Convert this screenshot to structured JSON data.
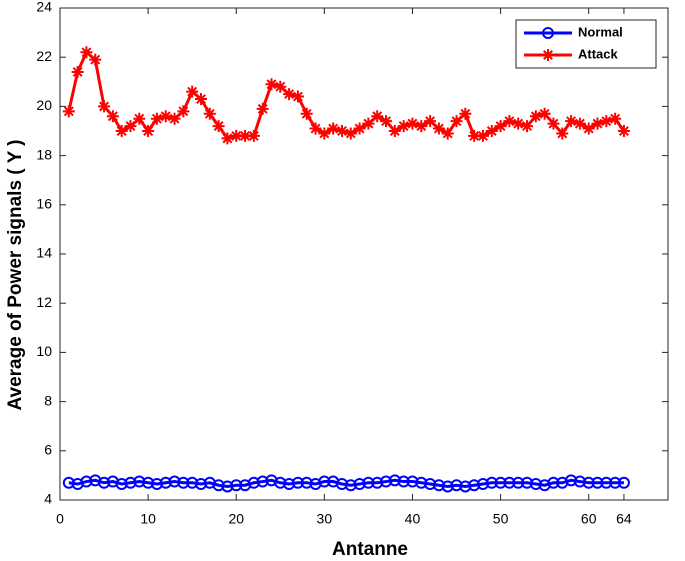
{
  "chart_data": {
    "type": "line",
    "x_label": "Antanne",
    "y_label": "Average of Power signals ( Y )",
    "x": [
      1,
      2,
      3,
      4,
      5,
      6,
      7,
      8,
      9,
      10,
      11,
      12,
      13,
      14,
      15,
      16,
      17,
      18,
      19,
      20,
      21,
      22,
      23,
      24,
      25,
      26,
      27,
      28,
      29,
      30,
      31,
      32,
      33,
      34,
      35,
      36,
      37,
      38,
      39,
      40,
      41,
      42,
      43,
      44,
      45,
      46,
      47,
      48,
      49,
      50,
      51,
      52,
      53,
      54,
      55,
      56,
      57,
      58,
      59,
      60,
      61,
      62,
      63,
      64
    ],
    "series": [
      {
        "name": "Normal",
        "color": "#0000ff",
        "marker": "circle",
        "values": [
          4.7,
          4.65,
          4.75,
          4.8,
          4.7,
          4.75,
          4.65,
          4.7,
          4.75,
          4.7,
          4.65,
          4.7,
          4.75,
          4.7,
          4.7,
          4.65,
          4.7,
          4.6,
          4.55,
          4.6,
          4.6,
          4.7,
          4.75,
          4.8,
          4.7,
          4.65,
          4.7,
          4.7,
          4.65,
          4.75,
          4.75,
          4.65,
          4.6,
          4.65,
          4.7,
          4.7,
          4.75,
          4.8,
          4.75,
          4.75,
          4.7,
          4.65,
          4.6,
          4.55,
          4.6,
          4.55,
          4.6,
          4.65,
          4.7,
          4.7,
          4.7,
          4.7,
          4.7,
          4.65,
          4.6,
          4.7,
          4.7,
          4.8,
          4.75,
          4.7,
          4.7,
          4.7,
          4.7,
          4.7
        ]
      },
      {
        "name": "Attack",
        "color": "#ff0000",
        "marker": "star",
        "values": [
          19.8,
          21.4,
          22.2,
          21.9,
          20.0,
          19.6,
          19.0,
          19.2,
          19.5,
          19.0,
          19.5,
          19.6,
          19.5,
          19.8,
          20.6,
          20.3,
          19.7,
          19.2,
          18.7,
          18.8,
          18.8,
          18.8,
          19.9,
          20.9,
          20.8,
          20.5,
          20.4,
          19.7,
          19.1,
          18.9,
          19.1,
          19.0,
          18.9,
          19.1,
          19.3,
          19.6,
          19.4,
          19.0,
          19.2,
          19.3,
          19.2,
          19.4,
          19.1,
          18.9,
          19.4,
          19.7,
          18.8,
          18.8,
          19.0,
          19.2,
          19.4,
          19.3,
          19.2,
          19.6,
          19.7,
          19.3,
          18.9,
          19.4,
          19.3,
          19.1,
          19.3,
          19.4,
          19.5,
          19.0
        ]
      }
    ],
    "xlim": [
      0,
      69
    ],
    "ylim": [
      4,
      24
    ],
    "xticks": [
      0,
      10,
      20,
      30,
      40,
      50,
      60,
      64
    ],
    "yticks": [
      4,
      6,
      8,
      10,
      12,
      14,
      16,
      18,
      20,
      22,
      24
    ],
    "legend": "upper right",
    "grid": false
  }
}
